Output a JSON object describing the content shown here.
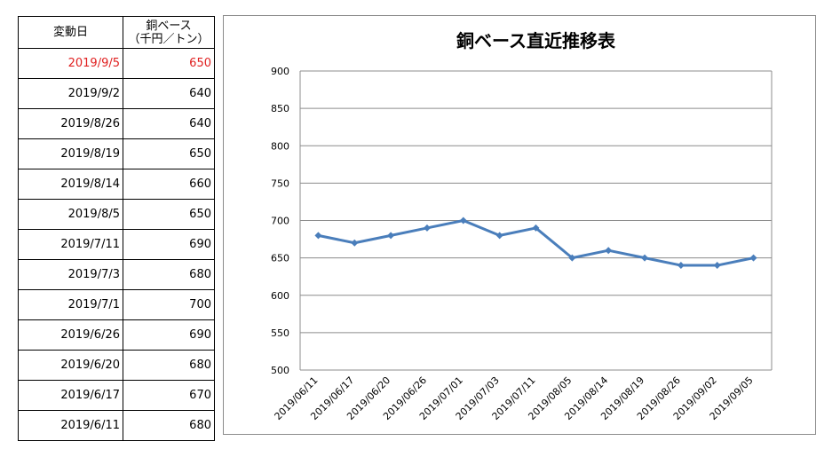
{
  "table": {
    "headers": {
      "date": "変動日",
      "price_line1": "銅ベース",
      "price_line2": "（千円／トン）"
    },
    "rows": [
      {
        "date": "2019/9/5",
        "price": "650",
        "highlight": true
      },
      {
        "date": "2019/9/2",
        "price": "640"
      },
      {
        "date": "2019/8/26",
        "price": "640"
      },
      {
        "date": "2019/8/19",
        "price": "650"
      },
      {
        "date": "2019/8/14",
        "price": "660"
      },
      {
        "date": "2019/8/5",
        "price": "650"
      },
      {
        "date": "2019/7/11",
        "price": "690"
      },
      {
        "date": "2019/7/3",
        "price": "680"
      },
      {
        "date": "2019/7/1",
        "price": "700"
      },
      {
        "date": "2019/6/26",
        "price": "690"
      },
      {
        "date": "2019/6/20",
        "price": "680"
      },
      {
        "date": "2019/6/17",
        "price": "670"
      },
      {
        "date": "2019/6/11",
        "price": "680"
      }
    ],
    "highlight_color": "#e02020"
  },
  "chart_data": {
    "type": "line",
    "title": "銅ベース直近推移表",
    "xlabel": "",
    "ylabel": "",
    "categories": [
      "2019/06/11",
      "2019/06/17",
      "2019/06/20",
      "2019/06/26",
      "2019/07/01",
      "2019/07/03",
      "2019/07/11",
      "2019/08/05",
      "2019/08/14",
      "2019/08/19",
      "2019/08/26",
      "2019/09/02",
      "2019/09/05"
    ],
    "series": [
      {
        "values": [
          680,
          670,
          680,
          690,
          700,
          680,
          690,
          650,
          660,
          650,
          640,
          640,
          650
        ],
        "color": "#4a7ebb"
      }
    ],
    "ylim": [
      500,
      900
    ],
    "yticks": [
      500,
      550,
      600,
      650,
      700,
      750,
      800,
      850,
      900
    ],
    "grid": true,
    "legend": "none",
    "marker": "diamond"
  }
}
